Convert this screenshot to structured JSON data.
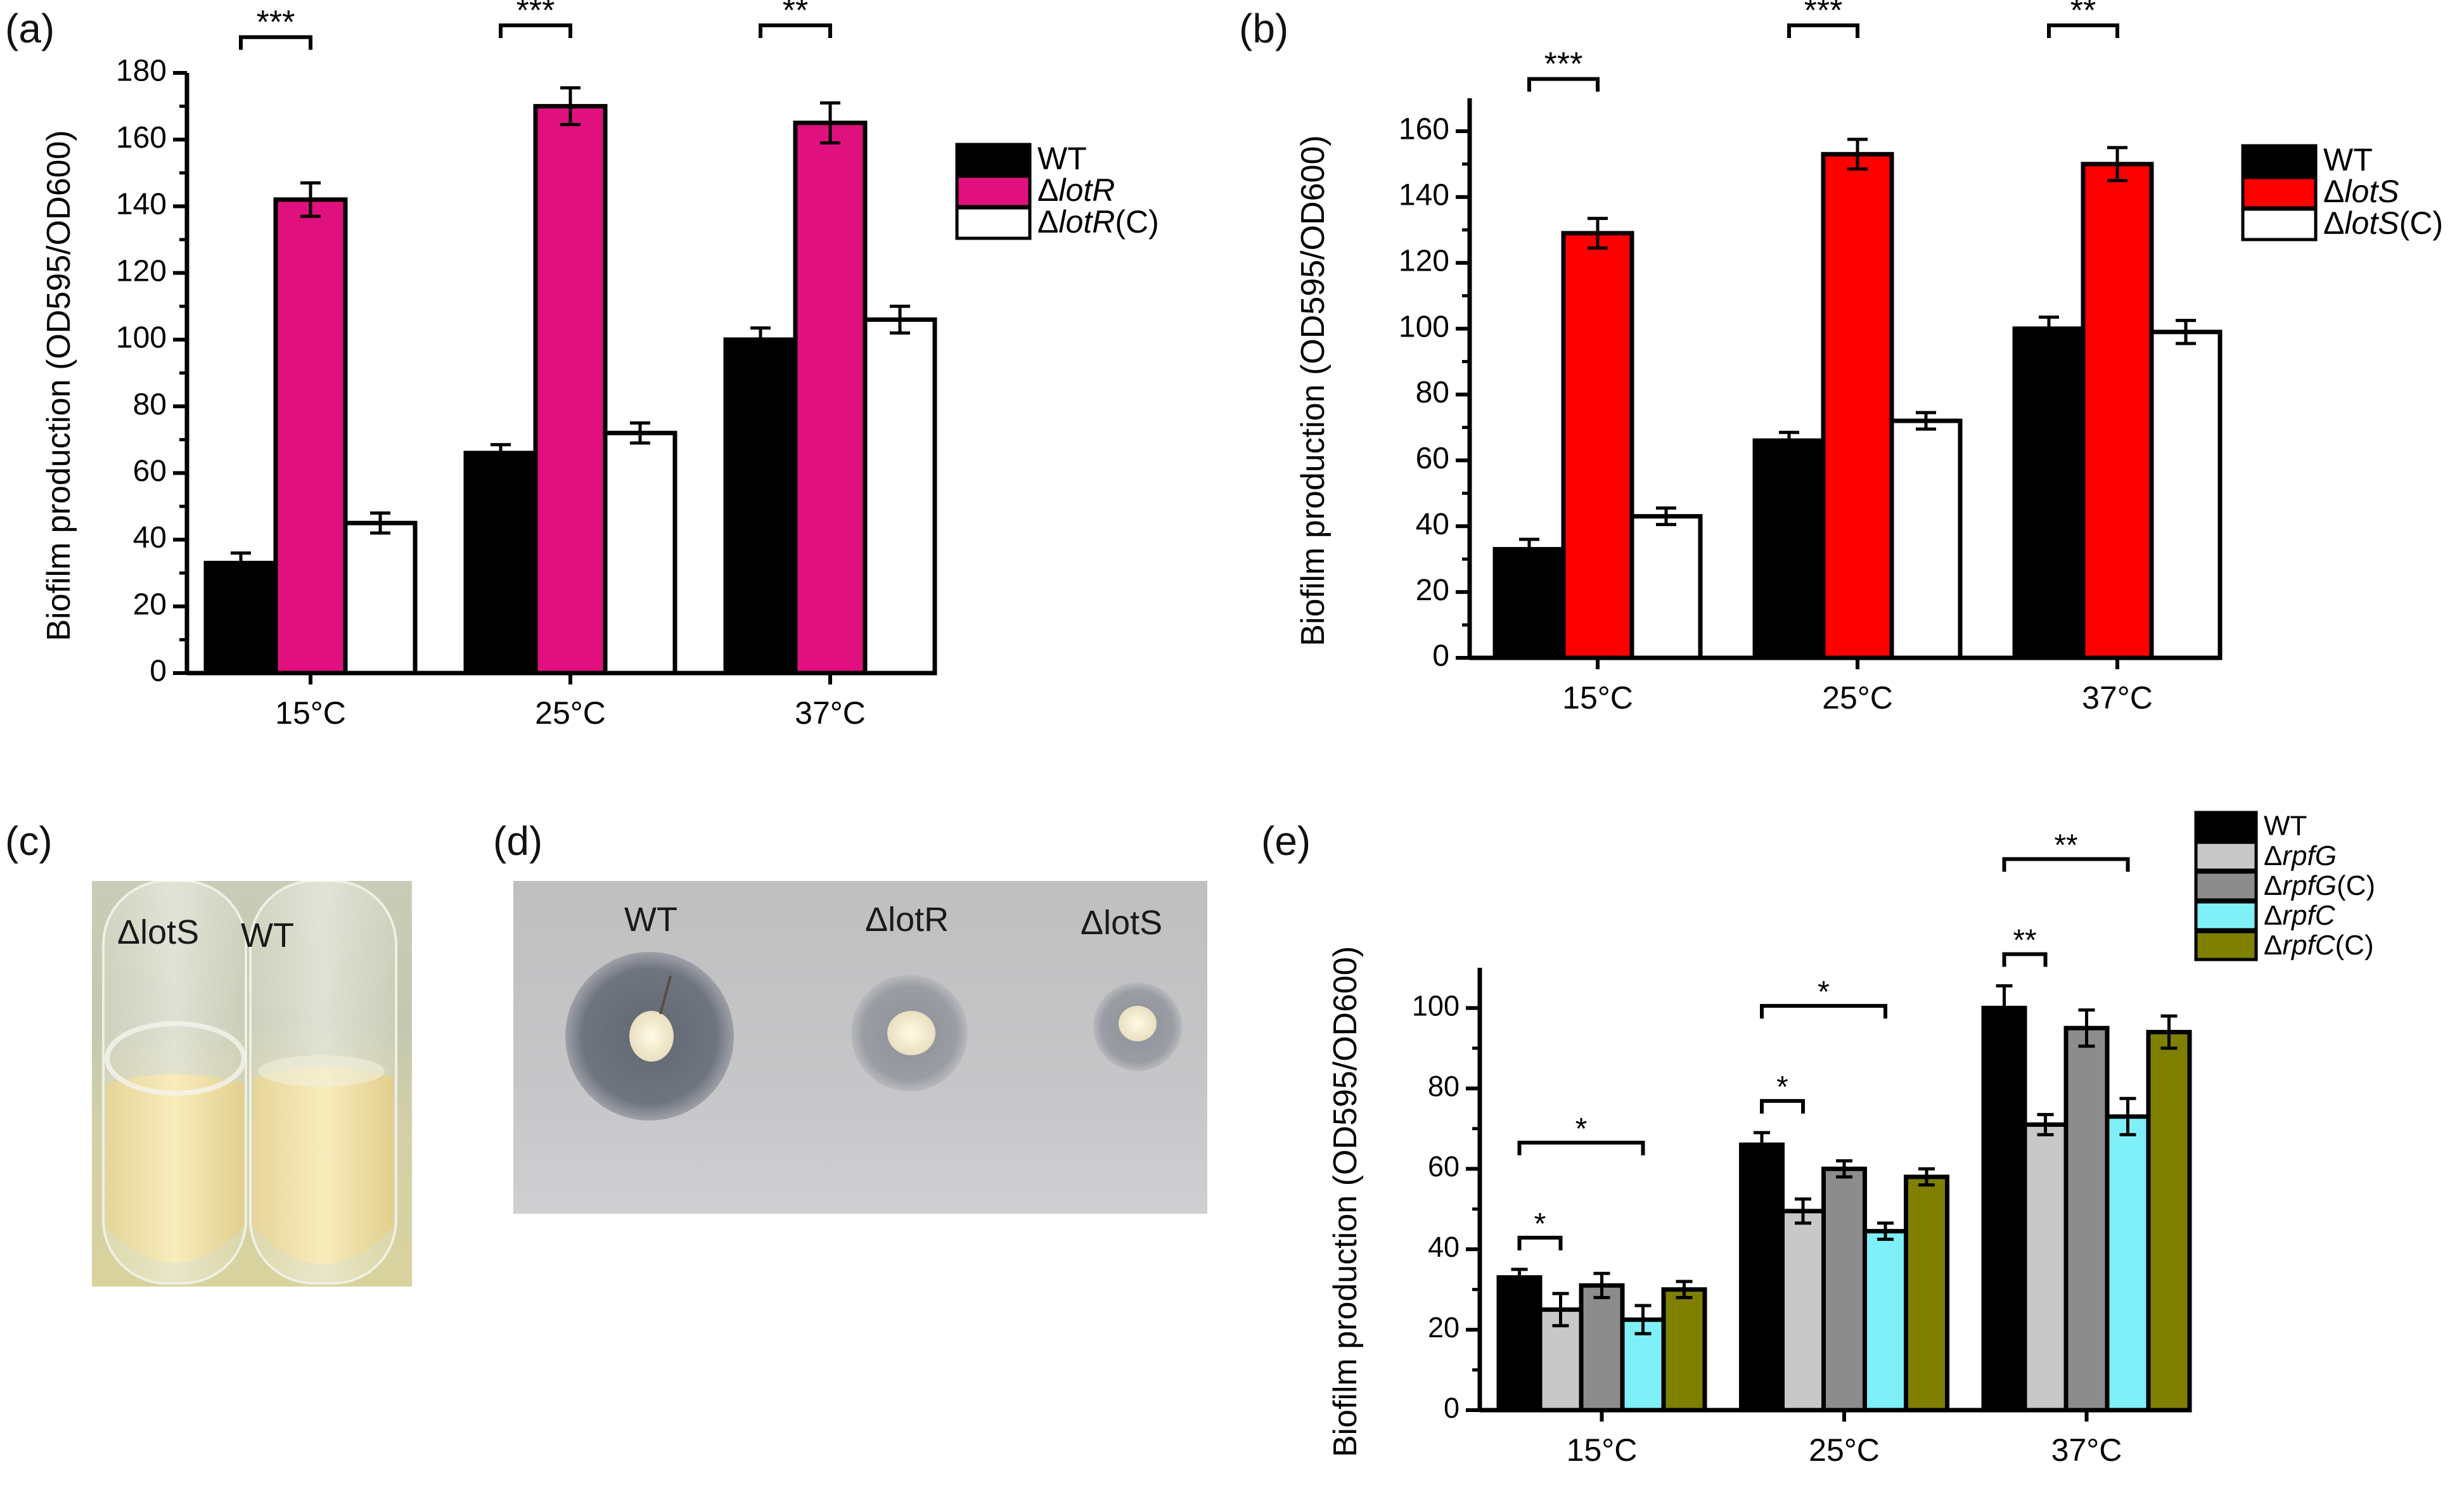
{
  "figure": {
    "panel_labels": [
      "(a)",
      "(b)",
      "(c)",
      "(d)",
      "(e)"
    ],
    "photo_c": {
      "labels": [
        "ΔlotS",
        "WT"
      ]
    },
    "photo_d": {
      "labels": [
        "WT",
        "ΔlotR",
        "ΔlotS"
      ]
    }
  },
  "chart_data": [
    {
      "type": "bar",
      "panel": "(a)",
      "title": "",
      "xlabel": "",
      "ylabel": "Biofilm production (OD595/OD600)",
      "categories": [
        "15°C",
        "25°C",
        "37°C"
      ],
      "ylim": [
        0,
        180
      ],
      "yticks": [
        0,
        20,
        40,
        60,
        80,
        100,
        120,
        140,
        160,
        180
      ],
      "grid": false,
      "legend_position": "right",
      "series": [
        {
          "name": "WT",
          "color": "#000000",
          "values": [
            33,
            66,
            100
          ],
          "errors": [
            3,
            2.5,
            3.5
          ]
        },
        {
          "name": "ΔlotR",
          "color": "#e0117f",
          "values": [
            142,
            170,
            165
          ],
          "errors": [
            5,
            5.5,
            6
          ]
        },
        {
          "name": "ΔlotR(C)",
          "color": "#ffffff",
          "values": [
            45,
            72,
            106
          ],
          "errors": [
            3,
            3,
            4
          ]
        }
      ],
      "significance": [
        {
          "category": 0,
          "from": 0,
          "to": 1,
          "label": "***"
        },
        {
          "category": 1,
          "from": 0,
          "to": 1,
          "label": "***"
        },
        {
          "category": 2,
          "from": 0,
          "to": 1,
          "label": "**"
        }
      ]
    },
    {
      "type": "bar",
      "panel": "(b)",
      "title": "",
      "xlabel": "",
      "ylabel": "Biofilm production (OD595/OD600)",
      "categories": [
        "15°C",
        "25°C",
        "37°C"
      ],
      "ylim": [
        0,
        170
      ],
      "yticks": [
        0,
        20,
        40,
        60,
        80,
        100,
        120,
        140,
        160
      ],
      "grid": false,
      "legend_position": "right",
      "series": [
        {
          "name": "WT",
          "color": "#000000",
          "values": [
            33,
            66,
            100
          ],
          "errors": [
            3,
            2.5,
            3.5
          ]
        },
        {
          "name": "ΔlotS",
          "color": "#ff0000",
          "values": [
            129,
            153,
            150
          ],
          "errors": [
            4.5,
            4.5,
            5
          ]
        },
        {
          "name": "ΔlotS(C)",
          "color": "#ffffff",
          "values": [
            43,
            72,
            99
          ],
          "errors": [
            2.5,
            2.5,
            3.5
          ]
        }
      ],
      "significance": [
        {
          "category": 0,
          "from": 0,
          "to": 1,
          "label": "***"
        },
        {
          "category": 1,
          "from": 0,
          "to": 1,
          "label": "***"
        },
        {
          "category": 2,
          "from": 0,
          "to": 1,
          "label": "**"
        }
      ]
    },
    {
      "type": "bar",
      "panel": "(e)",
      "title": "",
      "xlabel": "",
      "ylabel": "Biofilm production (OD595/OD600)",
      "categories": [
        "15°C",
        "25°C",
        "37°C"
      ],
      "ylim": [
        0,
        110
      ],
      "yticks": [
        0,
        20,
        40,
        60,
        80,
        100
      ],
      "grid": false,
      "legend_position": "top-right",
      "series": [
        {
          "name": "WT",
          "color": "#000000",
          "values": [
            33,
            66,
            100
          ],
          "errors": [
            2,
            3,
            5.5
          ]
        },
        {
          "name": "ΔrpfG",
          "color": "#c8c8c8",
          "values": [
            25,
            49.5,
            71
          ],
          "errors": [
            4,
            3,
            2.5
          ]
        },
        {
          "name": "ΔrpfG(C)",
          "color": "#8c8c8c",
          "values": [
            31,
            60,
            95
          ],
          "errors": [
            3,
            2,
            4.5
          ]
        },
        {
          "name": "ΔrpfC",
          "color": "#7ff0f7",
          "values": [
            22.5,
            44.5,
            73
          ],
          "errors": [
            3.5,
            2,
            4.5
          ]
        },
        {
          "name": "ΔrpfC(C)",
          "color": "#808000",
          "values": [
            30,
            58,
            94
          ],
          "errors": [
            2,
            2,
            4
          ]
        }
      ],
      "significance": [
        {
          "category": 0,
          "from": 0,
          "to": 1,
          "label": "*",
          "level": 0
        },
        {
          "category": 0,
          "from": 0,
          "to": 3,
          "label": "*",
          "level": 1
        },
        {
          "category": 1,
          "from": 0,
          "to": 1,
          "label": "*",
          "level": 0
        },
        {
          "category": 1,
          "from": 0,
          "to": 3,
          "label": "*",
          "level": 1
        },
        {
          "category": 2,
          "from": 0,
          "to": 1,
          "label": "**",
          "level": 0
        },
        {
          "category": 2,
          "from": 0,
          "to": 3,
          "label": "**",
          "level": 1
        }
      ]
    }
  ]
}
